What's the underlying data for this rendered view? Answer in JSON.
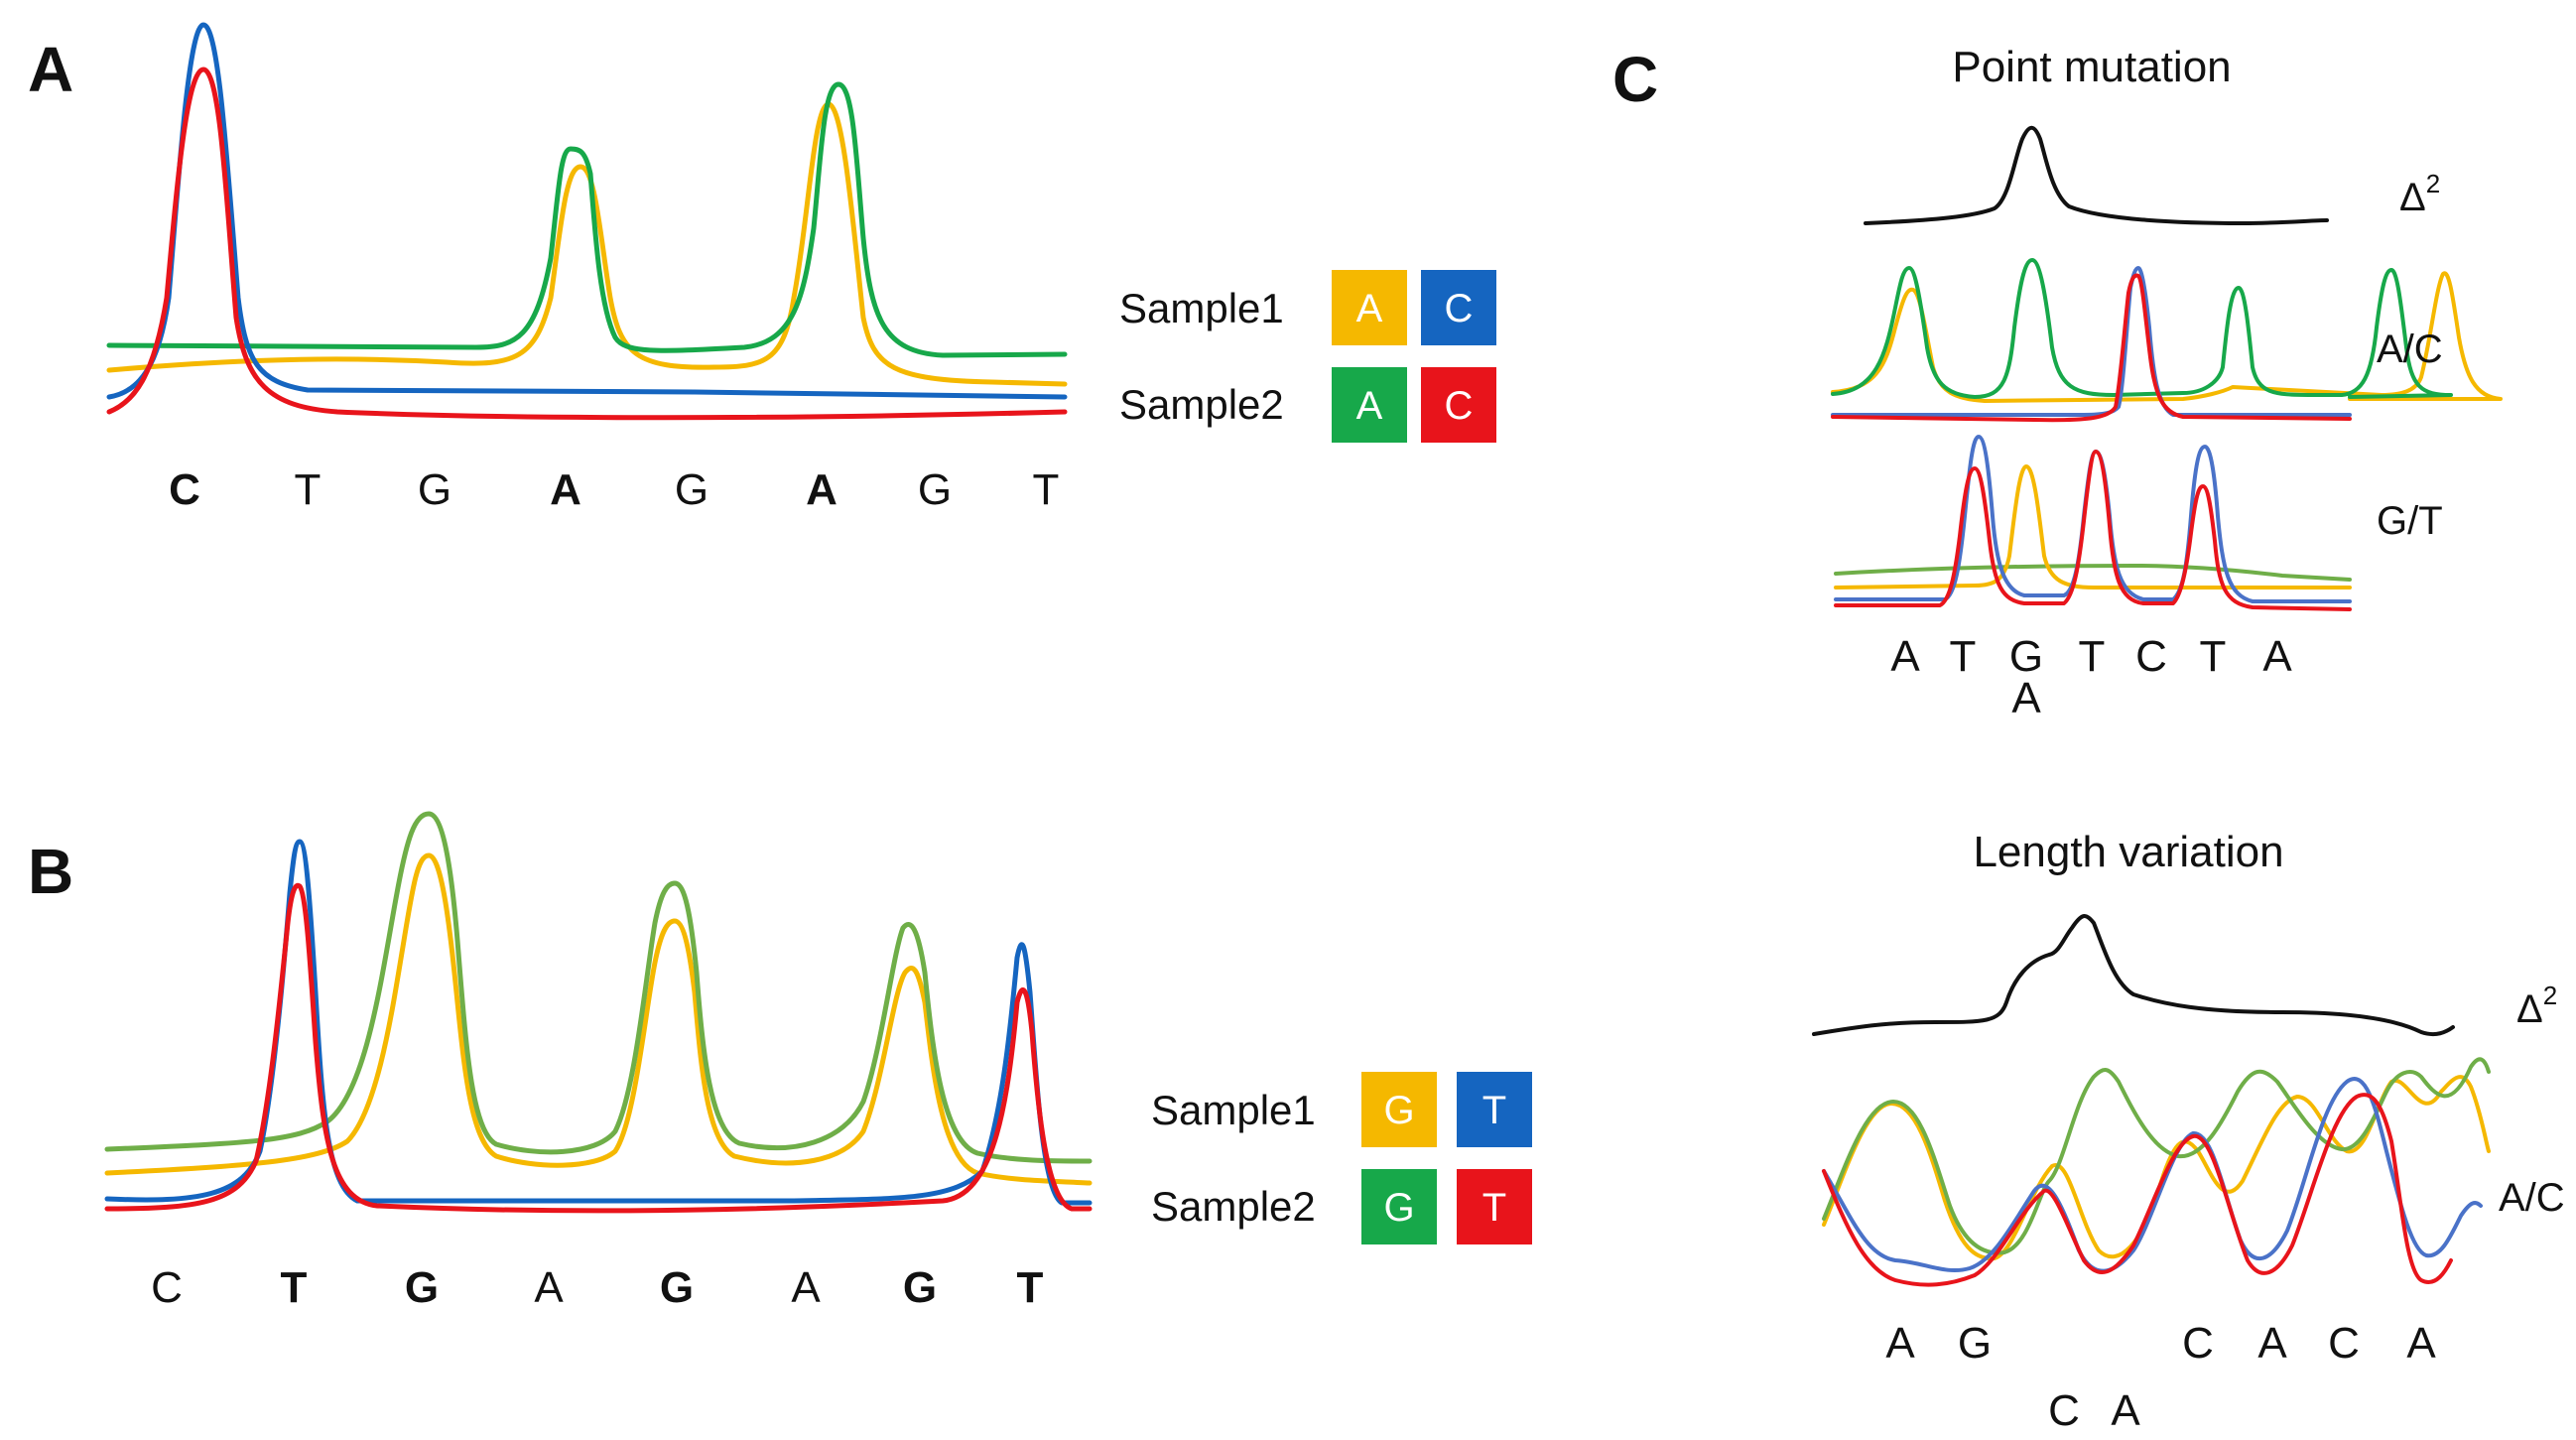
{
  "colors": {
    "sample1_a": "#F5B800",
    "sample1_c": "#1565C0",
    "sample2_a": "#17A84A",
    "sample2_c": "#E8141B",
    "green_soft": "#6FAE48",
    "blue_soft": "#4A72C8",
    "delta": "#111111"
  },
  "panel_a": {
    "label": "A",
    "bases": [
      {
        "text": "C",
        "bold": true
      },
      {
        "text": "T",
        "bold": false
      },
      {
        "text": "G",
        "bold": false
      },
      {
        "text": "A",
        "bold": true
      },
      {
        "text": "G",
        "bold": false
      },
      {
        "text": "A",
        "bold": true
      },
      {
        "text": "G",
        "bold": false
      },
      {
        "text": "T",
        "bold": false
      }
    ],
    "legend": {
      "rows": [
        {
          "name": "Sample1",
          "swatches": [
            {
              "text": "A",
              "color": "#F5B800"
            },
            {
              "text": "C",
              "color": "#1565C0"
            }
          ]
        },
        {
          "name": "Sample2",
          "swatches": [
            {
              "text": "A",
              "color": "#17A84A"
            },
            {
              "text": "C",
              "color": "#E8141B"
            }
          ]
        }
      ]
    }
  },
  "panel_b": {
    "label": "B",
    "bases": [
      {
        "text": "C",
        "bold": false
      },
      {
        "text": "T",
        "bold": true
      },
      {
        "text": "G",
        "bold": true
      },
      {
        "text": "A",
        "bold": false
      },
      {
        "text": "G",
        "bold": true
      },
      {
        "text": "A",
        "bold": false
      },
      {
        "text": "G",
        "bold": true
      },
      {
        "text": "T",
        "bold": true
      }
    ],
    "legend": {
      "rows": [
        {
          "name": "Sample1",
          "swatches": [
            {
              "text": "G",
              "color": "#F5B800"
            },
            {
              "text": "T",
              "color": "#1565C0"
            }
          ]
        },
        {
          "name": "Sample2",
          "swatches": [
            {
              "text": "G",
              "color": "#17A84A"
            },
            {
              "text": "T",
              "color": "#E8141B"
            }
          ]
        }
      ]
    }
  },
  "panel_c": {
    "label": "C",
    "point_mutation": {
      "title": "Point mutation",
      "delta_label": "Δ",
      "delta_exp": "2",
      "row1_label": "A/C",
      "row2_label": "G/T",
      "bases": [
        "A",
        "T",
        "G",
        "T",
        "C",
        "T",
        "A"
      ],
      "mutant_base": "A",
      "highlight_index": 2
    },
    "length_variation": {
      "title": "Length variation",
      "delta_label": "Δ",
      "delta_exp": "2",
      "row_label": "A/C",
      "bases_top": [
        "A",
        "G",
        "C",
        "A",
        "C",
        "A"
      ],
      "bases_bottom": [
        "C",
        "A"
      ]
    }
  }
}
